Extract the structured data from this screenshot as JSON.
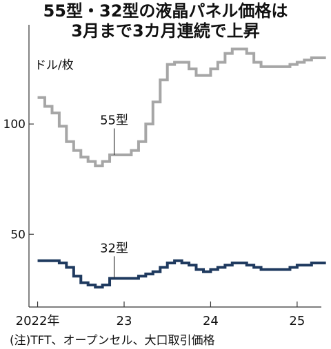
{
  "title_lines": [
    "55型・32型の液晶パネル価格は",
    "3月まで3カ月連続で上昇"
  ],
  "note": "(注)TFT、オープンセル、大口取引価格",
  "chart_data": {
    "type": "line",
    "step": true,
    "title": "55型・32型の液晶パネル価格は 3月まで3カ月連続で上昇",
    "ylabel": "ドル/枚",
    "ylim": [
      17,
      145
    ],
    "yticks": [
      50,
      100
    ],
    "xlim": [
      2021.9,
      2025.28
    ],
    "xticks": [
      {
        "value": 2022,
        "label": "2022年"
      },
      {
        "value": 2023,
        "label": "23"
      },
      {
        "value": 2024,
        "label": "24"
      },
      {
        "value": 2025,
        "label": "25"
      }
    ],
    "grid": false,
    "series": [
      {
        "name": "55型",
        "color": "#a6a6a6",
        "x": [
          2022.0,
          2022.083,
          2022.167,
          2022.25,
          2022.333,
          2022.417,
          2022.5,
          2022.583,
          2022.667,
          2022.75,
          2022.833,
          2022.917,
          2023.0,
          2023.083,
          2023.167,
          2023.25,
          2023.333,
          2023.417,
          2023.5,
          2023.583,
          2023.667,
          2023.75,
          2023.833,
          2023.917,
          2024.0,
          2024.083,
          2024.167,
          2024.25,
          2024.333,
          2024.417,
          2024.5,
          2024.583,
          2024.667,
          2024.75,
          2024.833,
          2024.917,
          2025.0,
          2025.083,
          2025.167,
          2025.25
        ],
        "values": [
          112,
          108,
          105,
          99,
          92,
          88,
          85,
          83,
          81,
          83,
          86,
          86,
          86,
          88,
          92,
          100,
          110,
          120,
          127,
          128,
          128,
          125,
          122,
          122,
          125,
          128,
          132,
          134,
          134,
          132,
          128,
          126,
          126,
          126,
          126,
          127,
          128,
          129,
          130,
          130
        ]
      },
      {
        "name": "32型",
        "color": "#1f3a5f",
        "x": [
          2022.0,
          2022.083,
          2022.167,
          2022.25,
          2022.333,
          2022.417,
          2022.5,
          2022.583,
          2022.667,
          2022.75,
          2022.833,
          2022.917,
          2023.0,
          2023.083,
          2023.167,
          2023.25,
          2023.333,
          2023.417,
          2023.5,
          2023.583,
          2023.667,
          2023.75,
          2023.833,
          2023.917,
          2024.0,
          2024.083,
          2024.167,
          2024.25,
          2024.333,
          2024.417,
          2024.5,
          2024.583,
          2024.667,
          2024.75,
          2024.833,
          2024.917,
          2025.0,
          2025.083,
          2025.167,
          2025.25
        ],
        "values": [
          38,
          38,
          38,
          37,
          35,
          31,
          28,
          27,
          26,
          27,
          30,
          30,
          30,
          30,
          31,
          32,
          33,
          35,
          37,
          38,
          37,
          36,
          34,
          33,
          34,
          35,
          36,
          37,
          37,
          36,
          35,
          34,
          34,
          34,
          34,
          35,
          36,
          36,
          37,
          37
        ]
      }
    ],
    "annotations": [
      {
        "text": "55型",
        "series": 0,
        "x": 2022.917,
        "label_value": 98
      },
      {
        "text": "32型",
        "series": 1,
        "x": 2022.917,
        "label_value": 40
      }
    ]
  }
}
